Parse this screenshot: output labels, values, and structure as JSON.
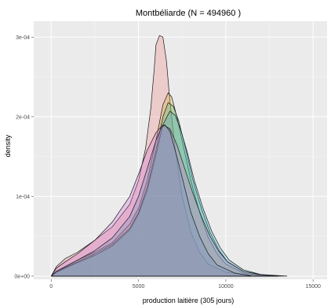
{
  "chart_data": {
    "type": "area",
    "title": "Montbéliarde (N = 494960 )",
    "xlabel": "production laitière (305 jours)",
    "ylabel": "density",
    "xlim": [
      -1000,
      15800
    ],
    "ylim": [
      -4e-06,
      0.00032
    ],
    "x_ticks": [
      0,
      5000,
      10000,
      15000
    ],
    "x_tick_labels": [
      "0",
      "5000",
      "10000",
      "15000"
    ],
    "y_ticks": [
      0,
      0.0001,
      0.0002,
      0.0003
    ],
    "y_tick_labels": [
      "0e+00",
      "1e-04",
      "2e-04",
      "3e-04"
    ],
    "grid": true,
    "legend": "none",
    "panel_background": "#ebebeb",
    "grid_color": "#ffffff",
    "series": [
      {
        "color": "#f08080",
        "points": [
          [
            0,
            0
          ],
          [
            300,
            1.2e-05
          ],
          [
            800,
            2.2e-05
          ],
          [
            1500,
            3e-05
          ],
          [
            2500,
            4.5e-05
          ],
          [
            3500,
            6.2e-05
          ],
          [
            4500,
            9e-05
          ],
          [
            5000,
            0.00012
          ],
          [
            5400,
            0.00016
          ],
          [
            5700,
            0.00021
          ],
          [
            5900,
            0.00026
          ],
          [
            6000,
            0.00029
          ],
          [
            6200,
            0.000302
          ],
          [
            6400,
            0.0003
          ],
          [
            6600,
            0.00027
          ],
          [
            6800,
            0.00022
          ],
          [
            7100,
            0.00016
          ],
          [
            7500,
            0.0001
          ],
          [
            8000,
            5.5e-05
          ],
          [
            8500,
            3e-05
          ],
          [
            9000,
            1.5e-05
          ],
          [
            10000,
            5e-06
          ],
          [
            11000,
            2e-06
          ],
          [
            12000,
            5e-07
          ],
          [
            12500,
            0
          ]
        ]
      },
      {
        "color": "#d8b030",
        "points": [
          [
            0,
            0
          ],
          [
            300,
            6e-06
          ],
          [
            800,
            1.2e-05
          ],
          [
            1500,
            2e-05
          ],
          [
            2500,
            3e-05
          ],
          [
            3500,
            4.2e-05
          ],
          [
            4500,
            6.5e-05
          ],
          [
            5000,
            8.5e-05
          ],
          [
            5500,
            0.00012
          ],
          [
            6000,
            0.00017
          ],
          [
            6400,
            0.000215
          ],
          [
            6700,
            0.00023
          ],
          [
            6900,
            0.000225
          ],
          [
            7200,
            0.0002
          ],
          [
            7600,
            0.00016
          ],
          [
            8000,
            0.00012
          ],
          [
            8500,
            8e-05
          ],
          [
            9000,
            4.8e-05
          ],
          [
            9500,
            2.8e-05
          ],
          [
            10000,
            1.5e-05
          ],
          [
            11000,
            4e-06
          ],
          [
            12000,
            1e-06
          ],
          [
            13000,
            0
          ]
        ]
      },
      {
        "color": "#40c080",
        "points": [
          [
            0,
            0
          ],
          [
            300,
            5e-06
          ],
          [
            800,
            1.1e-05
          ],
          [
            1500,
            1.8e-05
          ],
          [
            2500,
            2.8e-05
          ],
          [
            3500,
            4e-05
          ],
          [
            4500,
            6e-05
          ],
          [
            5000,
            8e-05
          ],
          [
            5500,
            0.000112
          ],
          [
            6000,
            0.000158
          ],
          [
            6400,
            0.0002
          ],
          [
            6700,
            0.000218
          ],
          [
            7000,
            0.000213
          ],
          [
            7300,
            0.000195
          ],
          [
            7700,
            0.00016
          ],
          [
            8100,
            0.000122
          ],
          [
            8600,
            8.5e-05
          ],
          [
            9100,
            5.5e-05
          ],
          [
            9600,
            3.3e-05
          ],
          [
            10100,
            1.8e-05
          ],
          [
            11000,
            6e-06
          ],
          [
            12000,
            1.5e-06
          ],
          [
            13000,
            0
          ]
        ]
      },
      {
        "color": "#40b0c8",
        "points": [
          [
            0,
            0
          ],
          [
            300,
            5e-06
          ],
          [
            800,
            1e-05
          ],
          [
            1500,
            1.7e-05
          ],
          [
            2500,
            2.6e-05
          ],
          [
            3500,
            3.8e-05
          ],
          [
            4500,
            5.8e-05
          ],
          [
            5000,
            7.8e-05
          ],
          [
            5500,
            0.000108
          ],
          [
            6000,
            0.000152
          ],
          [
            6400,
            0.00019
          ],
          [
            6800,
            0.000207
          ],
          [
            7100,
            0.000202
          ],
          [
            7400,
            0.000185
          ],
          [
            7800,
            0.000155
          ],
          [
            8200,
            0.00012
          ],
          [
            8700,
            8.5e-05
          ],
          [
            9200,
            5.6e-05
          ],
          [
            9700,
            3.5e-05
          ],
          [
            10200,
            2e-05
          ],
          [
            11000,
            8e-06
          ],
          [
            12000,
            2e-06
          ],
          [
            13500,
            0
          ]
        ]
      },
      {
        "color": "#d070d8",
        "points": [
          [
            0,
            0
          ],
          [
            300,
            1e-05
          ],
          [
            800,
            1.8e-05
          ],
          [
            1500,
            2.8e-05
          ],
          [
            2500,
            4.5e-05
          ],
          [
            3500,
            6.8e-05
          ],
          [
            4500,
            0.0001
          ],
          [
            5000,
            0.000128
          ],
          [
            5500,
            0.000158
          ],
          [
            6000,
            0.00018
          ],
          [
            6400,
            0.00019
          ],
          [
            6800,
            0.000185
          ],
          [
            7200,
            0.000165
          ],
          [
            7600,
            0.000138
          ],
          [
            8100,
            0.000105
          ],
          [
            8600,
            7.5e-05
          ],
          [
            9100,
            5e-05
          ],
          [
            9600,
            3.1e-05
          ],
          [
            10100,
            1.8e-05
          ],
          [
            11000,
            6e-06
          ],
          [
            12000,
            2e-06
          ],
          [
            13000,
            0
          ]
        ]
      },
      {
        "color": "#7090c0",
        "points": [
          [
            0,
            0
          ],
          [
            300,
            6e-06
          ],
          [
            800,
            1.2e-05
          ],
          [
            1500,
            2e-05
          ],
          [
            2500,
            3.2e-05
          ],
          [
            3500,
            4.8e-05
          ],
          [
            4500,
            7.5e-05
          ],
          [
            5000,
            0.0001
          ],
          [
            5500,
            0.000135
          ],
          [
            6000,
            0.00017
          ],
          [
            6300,
            0.000186
          ],
          [
            6500,
            0.00019
          ],
          [
            6800,
            0.000182
          ],
          [
            7200,
            0.00015
          ],
          [
            7600,
            0.000115
          ],
          [
            8000,
            8e-05
          ],
          [
            8500,
            5e-05
          ],
          [
            9000,
            2.8e-05
          ],
          [
            9500,
            1.4e-05
          ],
          [
            10500,
            4e-06
          ],
          [
            11500,
            0
          ]
        ]
      }
    ]
  }
}
